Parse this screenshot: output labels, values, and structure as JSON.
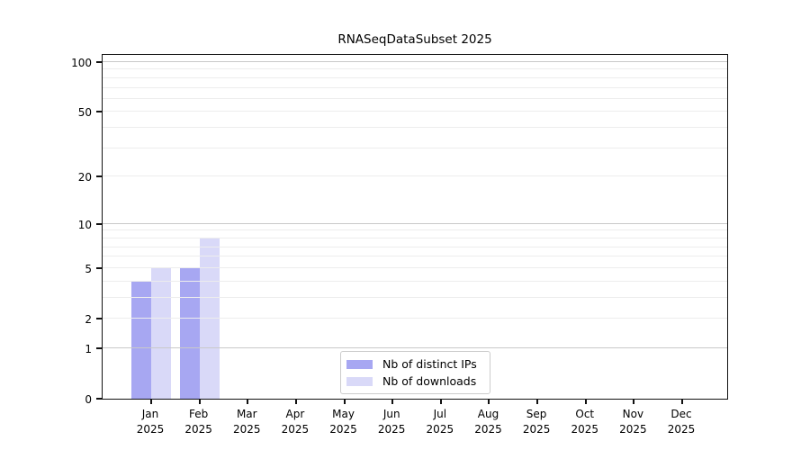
{
  "chart_data": {
    "type": "bar",
    "title": "RNASeqDataSubset 2025",
    "categories": [
      "Jan",
      "Feb",
      "Mar",
      "Apr",
      "May",
      "Jun",
      "Jul",
      "Aug",
      "Sep",
      "Oct",
      "Nov",
      "Dec"
    ],
    "category_year": "2025",
    "series": [
      {
        "name": "Nb of distinct IPs",
        "color": "#a7a7f2",
        "values": [
          4,
          5,
          0,
          0,
          0,
          0,
          0,
          0,
          0,
          0,
          0,
          0
        ]
      },
      {
        "name": "Nb of downloads",
        "color": "#d9d9f8",
        "values": [
          5,
          8,
          0,
          0,
          0,
          0,
          0,
          0,
          0,
          0,
          0,
          0
        ]
      }
    ],
    "xlabel": "",
    "ylabel": "",
    "y_axis": {
      "scale": "log10(1+x)",
      "tick_values": [
        0,
        1,
        2,
        5,
        10,
        20,
        50,
        100
      ],
      "tick_labels": [
        "0",
        "1",
        "2",
        "5",
        "10",
        "20",
        "50",
        "100"
      ],
      "minor_grid_values": [
        2,
        3,
        4,
        5,
        6,
        7,
        8,
        9,
        20,
        30,
        40,
        50,
        60,
        70,
        80,
        90
      ],
      "major_grid_values": [
        1,
        10,
        100
      ],
      "ylim": [
        0,
        113
      ]
    },
    "legend": {
      "position": "lower center",
      "entries": [
        "Nb of distinct IPs",
        "Nb of downloads"
      ]
    },
    "grid": true
  },
  "colors": {
    "bar_distinct_ips": "#a7a7f2",
    "bar_downloads": "#d9d9f8",
    "grid_minor": "#ededed",
    "grid_major": "#c9c9c9",
    "spine": "#111111",
    "text": "#000000",
    "legend_border": "#cccccc",
    "background": "#ffffff"
  }
}
